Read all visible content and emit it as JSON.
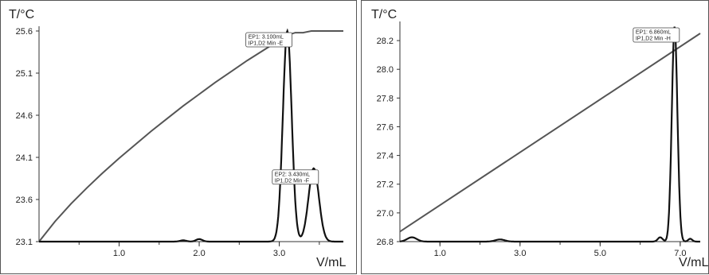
{
  "chart_data": [
    {
      "type": "line",
      "ylabel": "T/°C",
      "xlabel": "V/mL",
      "xlim": [
        0,
        3.8
      ],
      "ylim": [
        23.1,
        25.6
      ],
      "x_ticks": [
        "1.0",
        "2.0",
        "3.0"
      ],
      "x_tick_values": [
        1.0,
        2.0,
        3.0
      ],
      "y_ticks": [
        "25.6",
        "25.1",
        "24.6",
        "24.1",
        "23.6",
        "23.1"
      ],
      "y_tick_values": [
        25.6,
        25.1,
        24.6,
        24.1,
        23.6,
        23.1
      ],
      "series": [
        {
          "kind": "temperature",
          "x": [
            0,
            0.2,
            0.4,
            0.6,
            0.8,
            1.0,
            1.2,
            1.4,
            1.6,
            1.8,
            2.0,
            2.2,
            2.4,
            2.6,
            2.8,
            3.0,
            3.1,
            3.2,
            3.3,
            3.4,
            3.5,
            3.6,
            3.8
          ],
          "y": [
            23.1,
            23.34,
            23.55,
            23.74,
            23.92,
            24.09,
            24.25,
            24.41,
            24.56,
            24.71,
            24.85,
            24.99,
            25.12,
            25.25,
            25.37,
            25.49,
            25.55,
            25.58,
            25.58,
            25.6,
            25.6,
            25.6,
            25.6
          ]
        },
        {
          "kind": "derivative",
          "baseline": 23.1,
          "peaks": [
            {
              "center": 3.1,
              "height": 25.6,
              "width": 0.055
            },
            {
              "center": 3.43,
              "height": 23.97,
              "width": 0.065
            },
            {
              "center": 2.0,
              "height": 23.13,
              "width": 0.04
            },
            {
              "center": 1.8,
              "height": 23.115,
              "width": 0.04
            }
          ]
        }
      ],
      "annotations": [
        {
          "x": 3.1,
          "y": 25.6,
          "lines": [
            "EP1: 3.100mL",
            "IP1,D2 Min -E"
          ]
        },
        {
          "x": 3.43,
          "y": 23.97,
          "lines": [
            "EP2: 3.430mL",
            "IP1,D2 Min -F"
          ]
        }
      ]
    },
    {
      "type": "line",
      "ylabel": "T/°C",
      "xlabel": "V/mL",
      "xlim": [
        0,
        7.5
      ],
      "ylim": [
        26.8,
        28.3
      ],
      "x_ticks": [
        "1.0",
        "3.0",
        "5.0",
        "7.0"
      ],
      "x_tick_values": [
        1.0,
        3.0,
        5.0,
        7.0
      ],
      "y_ticks": [
        "28.2",
        "28.0",
        "27.8",
        "27.6",
        "27.4",
        "27.2",
        "27.0",
        "26.8"
      ],
      "y_tick_values": [
        28.2,
        28.0,
        27.8,
        27.6,
        27.4,
        27.2,
        27.0,
        26.8
      ],
      "series": [
        {
          "kind": "temperature",
          "x": [
            0,
            7.5
          ],
          "y": [
            26.87,
            28.25
          ]
        },
        {
          "kind": "derivative",
          "baseline": 26.8,
          "peaks": [
            {
              "center": 6.86,
              "height": 28.3,
              "width": 0.07
            },
            {
              "center": 0.3,
              "height": 26.83,
              "width": 0.12
            },
            {
              "center": 2.5,
              "height": 26.815,
              "width": 0.12
            },
            {
              "center": 6.5,
              "height": 26.83,
              "width": 0.06
            },
            {
              "center": 7.25,
              "height": 26.82,
              "width": 0.05
            }
          ]
        }
      ],
      "annotations": [
        {
          "x": 6.86,
          "y": 28.3,
          "lines": [
            "EP1: 6.860mL",
            "IP1,D2 Min -H"
          ]
        }
      ]
    }
  ]
}
